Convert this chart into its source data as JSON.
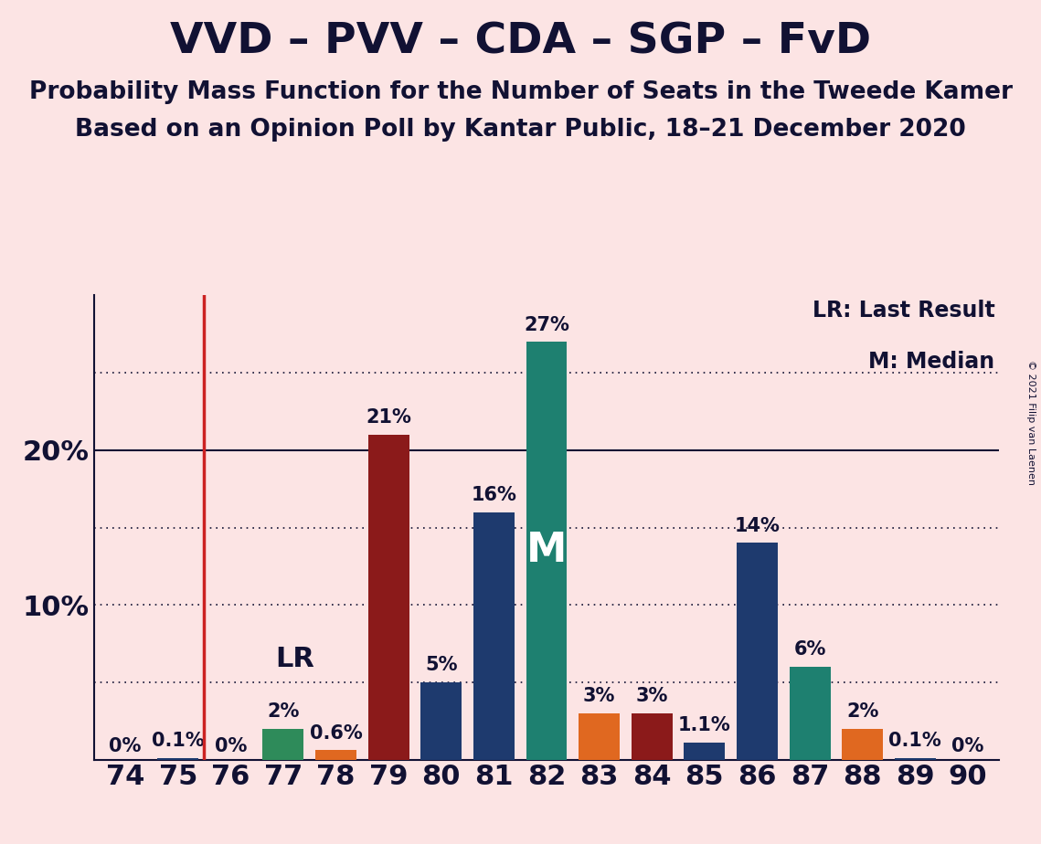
{
  "title": "VVD – PVV – CDA – SGP – FvD",
  "subtitle1": "Probability Mass Function for the Number of Seats in the Tweede Kamer",
  "subtitle2": "Based on an Opinion Poll by Kantar Public, 18–21 December 2020",
  "copyright": "© 2021 Filip van Laenen",
  "legend_lr": "LR: Last Result",
  "legend_m": "M: Median",
  "background_color": "#fce4e4",
  "seats": [
    74,
    75,
    76,
    77,
    78,
    79,
    80,
    81,
    82,
    83,
    84,
    85,
    86,
    87,
    88,
    89,
    90
  ],
  "values": [
    0.0,
    0.1,
    0.0,
    2.0,
    0.6,
    21.0,
    5.0,
    16.0,
    27.0,
    3.0,
    3.0,
    1.1,
    14.0,
    6.0,
    2.0,
    0.1,
    0.0
  ],
  "labels": [
    "0%",
    "0.1%",
    "0%",
    "2%",
    "0.6%",
    "21%",
    "5%",
    "16%",
    "27%",
    "3%",
    "3%",
    "1.1%",
    "14%",
    "6%",
    "2%",
    "0.1%",
    "0%"
  ],
  "bar_colors": [
    "#1e3a6e",
    "#1e3a6e",
    "#1e3a6e",
    "#2e8b5a",
    "#e06820",
    "#8b1a1a",
    "#1e3a6e",
    "#1e3a6e",
    "#1e8070",
    "#e06820",
    "#8b1a1a",
    "#1e3a6e",
    "#1e3a6e",
    "#1e8070",
    "#e06820",
    "#1e3a6e",
    "#1e3a6e"
  ],
  "lr_seat": 76,
  "median_seat": 82,
  "ylim": [
    0,
    30
  ],
  "solid_levels": [
    20
  ],
  "dotted_levels": [
    5,
    10,
    15,
    25
  ],
  "title_fontsize": 34,
  "subtitle_fontsize": 19,
  "tick_fontsize": 22,
  "bar_label_fontsize": 15,
  "lr_label_fontsize": 22,
  "m_label_fontsize": 32,
  "legend_fontsize": 17,
  "axis_color": "#111133",
  "lr_line_color": "#cc2222",
  "bar_width": 0.78
}
